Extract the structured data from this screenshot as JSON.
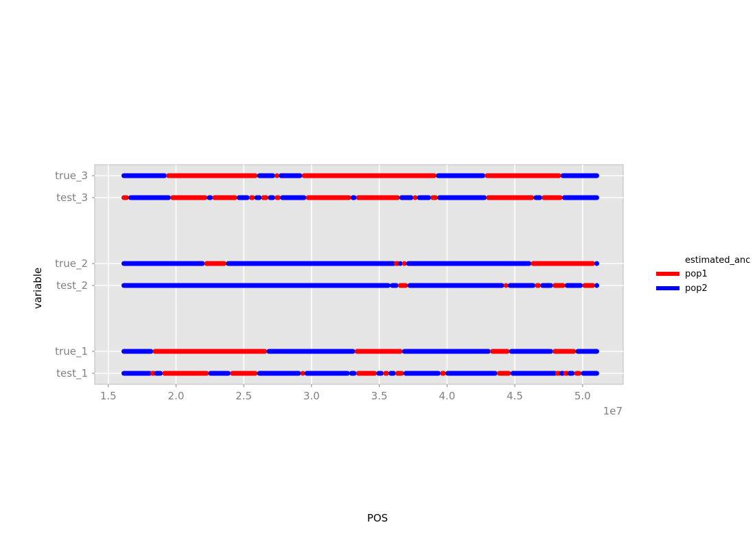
{
  "chart_data": {
    "type": "segment",
    "xlabel": "POS",
    "ylabel": "variable",
    "x_offset_text": "1e7",
    "xlim": [
      14000000.0,
      53000000.0
    ],
    "x_ticks": [
      15000000.0,
      20000000.0,
      25000000.0,
      30000000.0,
      35000000.0,
      40000000.0,
      45000000.0,
      50000000.0
    ],
    "x_tick_labels": [
      "1.5",
      "2.0",
      "2.5",
      "3.0",
      "3.5",
      "4.0",
      "4.5",
      "5.0"
    ],
    "grid": true,
    "legend": {
      "title": "estimated_anc",
      "placement": "right",
      "entries": [
        {
          "label": "pop1",
          "color": "#ff0000"
        },
        {
          "label": "pop2",
          "color": "#0000ff"
        }
      ]
    },
    "categories": [
      {
        "name": "true_3",
        "segments": [
          {
            "start": 16000000.0,
            "end": 19300000.0,
            "pop": "pop2"
          },
          {
            "start": 19300000.0,
            "end": 26000000.0,
            "pop": "pop1"
          },
          {
            "start": 26000000.0,
            "end": 27300000.0,
            "pop": "pop2"
          },
          {
            "start": 27300000.0,
            "end": 27600000.0,
            "pop": "pop1"
          },
          {
            "start": 27600000.0,
            "end": 29300000.0,
            "pop": "pop2"
          },
          {
            "start": 29300000.0,
            "end": 39200000.0,
            "pop": "pop1"
          },
          {
            "start": 39200000.0,
            "end": 42800000.0,
            "pop": "pop2"
          },
          {
            "start": 42800000.0,
            "end": 48400000.0,
            "pop": "pop1"
          },
          {
            "start": 48400000.0,
            "end": 51200000.0,
            "pop": "pop2"
          }
        ]
      },
      {
        "name": "test_3",
        "segments": [
          {
            "start": 16000000.0,
            "end": 16500000.0,
            "pop": "pop1"
          },
          {
            "start": 16500000.0,
            "end": 19600000.0,
            "pop": "pop2"
          },
          {
            "start": 19600000.0,
            "end": 22300000.0,
            "pop": "pop1"
          },
          {
            "start": 22300000.0,
            "end": 22700000.0,
            "pop": "pop2"
          },
          {
            "start": 22700000.0,
            "end": 24500000.0,
            "pop": "pop1"
          },
          {
            "start": 24500000.0,
            "end": 25400000.0,
            "pop": "pop2"
          },
          {
            "start": 25400000.0,
            "end": 25800000.0,
            "pop": "pop1"
          },
          {
            "start": 25800000.0,
            "end": 26300000.0,
            "pop": "pop2"
          },
          {
            "start": 26300000.0,
            "end": 26800000.0,
            "pop": "pop1"
          },
          {
            "start": 26800000.0,
            "end": 27300000.0,
            "pop": "pop2"
          },
          {
            "start": 27300000.0,
            "end": 27700000.0,
            "pop": "pop1"
          },
          {
            "start": 27700000.0,
            "end": 29600000.0,
            "pop": "pop2"
          },
          {
            "start": 29600000.0,
            "end": 32900000.0,
            "pop": "pop1"
          },
          {
            "start": 32900000.0,
            "end": 33300000.0,
            "pop": "pop2"
          },
          {
            "start": 33300000.0,
            "end": 36500000.0,
            "pop": "pop1"
          },
          {
            "start": 36500000.0,
            "end": 37500000.0,
            "pop": "pop2"
          },
          {
            "start": 37500000.0,
            "end": 37800000.0,
            "pop": "pop1"
          },
          {
            "start": 37800000.0,
            "end": 38800000.0,
            "pop": "pop2"
          },
          {
            "start": 38800000.0,
            "end": 39300000.0,
            "pop": "pop1"
          },
          {
            "start": 39300000.0,
            "end": 42900000.0,
            "pop": "pop2"
          },
          {
            "start": 42900000.0,
            "end": 46400000.0,
            "pop": "pop1"
          },
          {
            "start": 46400000.0,
            "end": 47000000.0,
            "pop": "pop2"
          },
          {
            "start": 47000000.0,
            "end": 48500000.0,
            "pop": "pop1"
          },
          {
            "start": 48500000.0,
            "end": 51200000.0,
            "pop": "pop2"
          }
        ]
      },
      {
        "name": "true_2",
        "segments": [
          {
            "start": 16000000.0,
            "end": 22100000.0,
            "pop": "pop2"
          },
          {
            "start": 22100000.0,
            "end": 23700000.0,
            "pop": "pop1"
          },
          {
            "start": 23700000.0,
            "end": 36200000.0,
            "pop": "pop2"
          },
          {
            "start": 36200000.0,
            "end": 36400000.0,
            "pop": "pop1"
          },
          {
            "start": 36400000.0,
            "end": 36700000.0,
            "pop": "pop2"
          },
          {
            "start": 36700000.0,
            "end": 37000000.0,
            "pop": "pop1"
          },
          {
            "start": 37000000.0,
            "end": 46200000.0,
            "pop": "pop2"
          },
          {
            "start": 46200000.0,
            "end": 50900000.0,
            "pop": "pop1"
          },
          {
            "start": 50900000.0,
            "end": 51200000.0,
            "pop": "pop2"
          }
        ]
      },
      {
        "name": "test_2",
        "segments": [
          {
            "start": 16000000.0,
            "end": 35800000.0,
            "pop": "pop2"
          },
          {
            "start": 35800000.0,
            "end": 36400000.0,
            "pop": "pop2"
          },
          {
            "start": 36400000.0,
            "end": 37100000.0,
            "pop": "pop1"
          },
          {
            "start": 37100000.0,
            "end": 44200000.0,
            "pop": "pop2"
          },
          {
            "start": 44200000.0,
            "end": 44500000.0,
            "pop": "pop1"
          },
          {
            "start": 44500000.0,
            "end": 46500000.0,
            "pop": "pop2"
          },
          {
            "start": 46500000.0,
            "end": 46900000.0,
            "pop": "pop1"
          },
          {
            "start": 46900000.0,
            "end": 47800000.0,
            "pop": "pop2"
          },
          {
            "start": 47800000.0,
            "end": 48700000.0,
            "pop": "pop1"
          },
          {
            "start": 48700000.0,
            "end": 50000000.0,
            "pop": "pop2"
          },
          {
            "start": 50000000.0,
            "end": 50900000.0,
            "pop": "pop1"
          },
          {
            "start": 50900000.0,
            "end": 51200000.0,
            "pop": "pop2"
          }
        ]
      },
      {
        "name": "true_1",
        "segments": [
          {
            "start": 16000000.0,
            "end": 18300000.0,
            "pop": "pop2"
          },
          {
            "start": 18300000.0,
            "end": 26700000.0,
            "pop": "pop1"
          },
          {
            "start": 26700000.0,
            "end": 33200000.0,
            "pop": "pop2"
          },
          {
            "start": 33200000.0,
            "end": 36700000.0,
            "pop": "pop1"
          },
          {
            "start": 36700000.0,
            "end": 43200000.0,
            "pop": "pop2"
          },
          {
            "start": 43200000.0,
            "end": 44600000.0,
            "pop": "pop1"
          },
          {
            "start": 44600000.0,
            "end": 47800000.0,
            "pop": "pop2"
          },
          {
            "start": 47800000.0,
            "end": 49500000.0,
            "pop": "pop1"
          },
          {
            "start": 49500000.0,
            "end": 51200000.0,
            "pop": "pop2"
          }
        ]
      },
      {
        "name": "test_1",
        "segments": [
          {
            "start": 16000000.0,
            "end": 18200000.0,
            "pop": "pop2"
          },
          {
            "start": 18200000.0,
            "end": 18400000.0,
            "pop": "pop1"
          },
          {
            "start": 18400000.0,
            "end": 19000000.0,
            "pop": "pop2"
          },
          {
            "start": 19000000.0,
            "end": 22400000.0,
            "pop": "pop1"
          },
          {
            "start": 22400000.0,
            "end": 24000000.0,
            "pop": "pop2"
          },
          {
            "start": 24000000.0,
            "end": 26000000.0,
            "pop": "pop1"
          },
          {
            "start": 26000000.0,
            "end": 29200000.0,
            "pop": "pop2"
          },
          {
            "start": 29200000.0,
            "end": 29500000.0,
            "pop": "pop1"
          },
          {
            "start": 29500000.0,
            "end": 32800000.0,
            "pop": "pop2"
          },
          {
            "start": 32800000.0,
            "end": 33300000.0,
            "pop": "pop2"
          },
          {
            "start": 33300000.0,
            "end": 34800000.0,
            "pop": "pop1"
          },
          {
            "start": 34800000.0,
            "end": 35300000.0,
            "pop": "pop2"
          },
          {
            "start": 35300000.0,
            "end": 35700000.0,
            "pop": "pop1"
          },
          {
            "start": 35700000.0,
            "end": 36200000.0,
            "pop": "pop2"
          },
          {
            "start": 36200000.0,
            "end": 36800000.0,
            "pop": "pop1"
          },
          {
            "start": 36800000.0,
            "end": 39500000.0,
            "pop": "pop2"
          },
          {
            "start": 39500000.0,
            "end": 39900000.0,
            "pop": "pop1"
          },
          {
            "start": 39900000.0,
            "end": 43700000.0,
            "pop": "pop2"
          },
          {
            "start": 43700000.0,
            "end": 44700000.0,
            "pop": "pop1"
          },
          {
            "start": 44700000.0,
            "end": 48100000.0,
            "pop": "pop2"
          },
          {
            "start": 48100000.0,
            "end": 48300000.0,
            "pop": "pop1"
          },
          {
            "start": 48300000.0,
            "end": 48700000.0,
            "pop": "pop2"
          },
          {
            "start": 48700000.0,
            "end": 48900000.0,
            "pop": "pop1"
          },
          {
            "start": 48900000.0,
            "end": 49400000.0,
            "pop": "pop2"
          },
          {
            "start": 49400000.0,
            "end": 49900000.0,
            "pop": "pop1"
          },
          {
            "start": 49900000.0,
            "end": 51200000.0,
            "pop": "pop2"
          }
        ]
      }
    ]
  }
}
